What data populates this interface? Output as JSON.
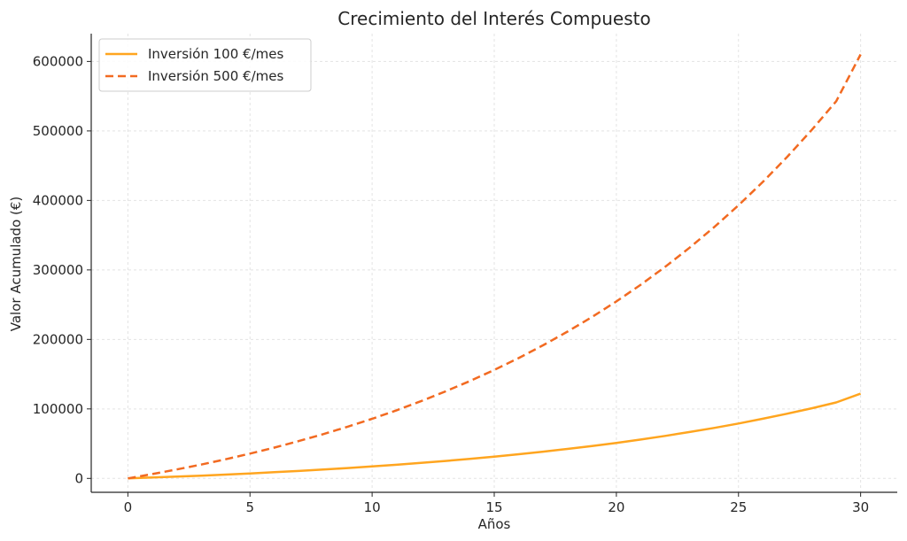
{
  "chart_data": {
    "type": "line",
    "title": "Crecimiento del Interés Compuesto",
    "xlabel": "Años",
    "ylabel": "Valor Acumulado (€)",
    "xlim": [
      -1.5,
      31.5
    ],
    "ylim": [
      -20000,
      640000
    ],
    "x_ticks": [
      0,
      5,
      10,
      15,
      20,
      25,
      30
    ],
    "y_ticks": [
      0,
      100000,
      200000,
      300000,
      400000,
      500000,
      600000
    ],
    "grid": true,
    "legend_position": "top-left",
    "x": [
      0,
      1,
      2,
      3,
      4,
      5,
      6,
      7,
      8,
      9,
      10,
      11,
      12,
      13,
      14,
      15,
      16,
      17,
      18,
      19,
      20,
      21,
      22,
      23,
      24,
      25,
      26,
      27,
      28,
      29,
      30
    ],
    "series": [
      {
        "name": "Inversión 100 €/mes",
        "color": "#FFA51F",
        "style": "solid",
        "values": [
          0,
          1240,
          2570,
          3990,
          5510,
          7140,
          8880,
          10750,
          12750,
          14890,
          17180,
          19630,
          22260,
          25070,
          28080,
          31300,
          34750,
          38440,
          42390,
          46620,
          51150,
          55990,
          61180,
          66730,
          72670,
          79030,
          85840,
          93130,
          100930,
          109280,
          122000
        ]
      },
      {
        "name": "Inversión 500 €/mes",
        "color": "#F26A21",
        "style": "dashed",
        "values": [
          0,
          6200,
          12840,
          19940,
          27540,
          35680,
          44390,
          53710,
          63680,
          74350,
          85770,
          98000,
          111080,
          125070,
          140050,
          156070,
          173220,
          191570,
          211200,
          232200,
          254680,
          278730,
          304470,
          332010,
          361480,
          393010,
          426750,
          462850,
          501480,
          542810,
          610000
        ]
      }
    ]
  }
}
